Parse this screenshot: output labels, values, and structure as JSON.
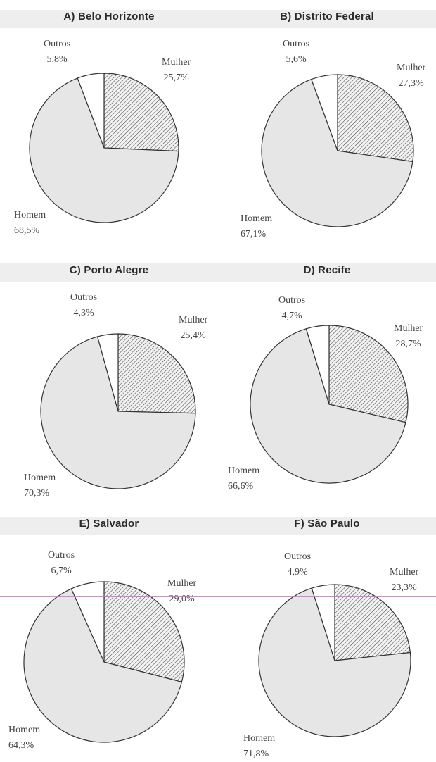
{
  "colors": {
    "pie_fill": "#e6e6e6",
    "hatch": "#444444",
    "outline": "#333333",
    "outros_fill": "#ffffff"
  },
  "chart_data": [
    {
      "type": "pie",
      "title": "A) Belo Horizonte",
      "slices": [
        {
          "label": "Mulher",
          "value_text": "25,7%",
          "value": 25.7
        },
        {
          "label": "Homem",
          "value_text": "68,5%",
          "value": 68.5
        },
        {
          "label": "Outros",
          "value_text": "5,8%",
          "value": 5.8
        }
      ]
    },
    {
      "type": "pie",
      "title": "B) Distrito Federal",
      "slices": [
        {
          "label": "Mulher",
          "value_text": "27,3%",
          "value": 27.3
        },
        {
          "label": "Homem",
          "value_text": "67,1%",
          "value": 67.1
        },
        {
          "label": "Outros",
          "value_text": "5,6%",
          "value": 5.6
        }
      ]
    },
    {
      "type": "pie",
      "title": "C) Porto Alegre",
      "slices": [
        {
          "label": "Mulher",
          "value_text": "25,4%",
          "value": 25.4
        },
        {
          "label": "Homem",
          "value_text": "70,3%",
          "value": 70.3
        },
        {
          "label": "Outros",
          "value_text": "4,3%",
          "value": 4.3
        }
      ]
    },
    {
      "type": "pie",
      "title": "D) Recife",
      "slices": [
        {
          "label": "Mulher",
          "value_text": "28,7%",
          "value": 28.7
        },
        {
          "label": "Homem",
          "value_text": "66,6%",
          "value": 66.6
        },
        {
          "label": "Outros",
          "value_text": "4,7%",
          "value": 4.7
        }
      ]
    },
    {
      "type": "pie",
      "title": "E) Salvador",
      "slices": [
        {
          "label": "Mulher",
          "value_text": "29,0%",
          "value": 29.0
        },
        {
          "label": "Homem",
          "value_text": "64,3%",
          "value": 64.3
        },
        {
          "label": "Outros",
          "value_text": "6,7%",
          "value": 6.7
        }
      ]
    },
    {
      "type": "pie",
      "title": "F) São Paulo",
      "slices": [
        {
          "label": "Mulher",
          "value_text": "23,3%",
          "value": 23.3
        },
        {
          "label": "Homem",
          "value_text": "71,8%",
          "value": 71.8
        },
        {
          "label": "Outros",
          "value_text": "4,9%",
          "value": 4.9
        }
      ]
    }
  ]
}
